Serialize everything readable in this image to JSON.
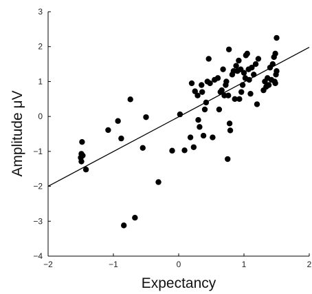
{
  "chart_data": {
    "type": "scatter",
    "title": "",
    "xlabel": "Expectancy",
    "ylabel": "Amplitude μV",
    "xlim": [
      -2,
      2
    ],
    "ylim": [
      -4,
      3
    ],
    "xticks": [
      -2,
      -1,
      0,
      1,
      2
    ],
    "yticks": [
      -4,
      -3,
      -2,
      -1,
      0,
      1,
      2,
      3
    ],
    "grid": false,
    "legend": "none",
    "marker_color": "#000000",
    "fit_line": {
      "x": [
        -2,
        2
      ],
      "y": [
        -2.0,
        1.98
      ]
    },
    "series": [
      {
        "points": [
          [
            -1.48,
            -0.73
          ],
          [
            -1.49,
            -1.07
          ],
          [
            -1.47,
            -1.12
          ],
          [
            -1.5,
            -1.18
          ],
          [
            -1.49,
            -1.29
          ],
          [
            -1.42,
            -1.52
          ],
          [
            -1.08,
            -0.39
          ],
          [
            -0.93,
            -0.13
          ],
          [
            -0.88,
            -0.63
          ],
          [
            -0.74,
            0.49
          ],
          [
            -0.55,
            -0.9
          ],
          [
            -0.5,
            -0.02
          ],
          [
            -0.31,
            -1.88
          ],
          [
            -0.67,
            -2.9
          ],
          [
            -0.84,
            -3.12
          ],
          [
            -0.1,
            -0.98
          ],
          [
            0.02,
            0.06
          ],
          [
            0.09,
            -0.97
          ],
          [
            0.18,
            -0.6
          ],
          [
            0.2,
            0.95
          ],
          [
            0.23,
            -0.88
          ],
          [
            0.25,
            0.72
          ],
          [
            0.29,
            0.6
          ],
          [
            0.3,
            -0.1
          ],
          [
            0.32,
            -0.3
          ],
          [
            0.35,
            0.9
          ],
          [
            0.36,
            0.7
          ],
          [
            0.38,
            -0.55
          ],
          [
            0.4,
            0.2
          ],
          [
            0.42,
            0.4
          ],
          [
            0.44,
            1.0
          ],
          [
            0.46,
            1.65
          ],
          [
            0.48,
            0.95
          ],
          [
            0.52,
            -0.6
          ],
          [
            0.55,
            1.05
          ],
          [
            0.6,
            1.1
          ],
          [
            0.62,
            0.2
          ],
          [
            0.64,
            0.7
          ],
          [
            0.66,
            0.75
          ],
          [
            0.68,
            1.35
          ],
          [
            0.7,
            0.6
          ],
          [
            0.72,
            0.9
          ],
          [
            0.73,
            1.0
          ],
          [
            0.75,
            -1.22
          ],
          [
            0.76,
            0.6
          ],
          [
            0.77,
            1.92
          ],
          [
            0.78,
            -0.2
          ],
          [
            0.79,
            -0.4
          ],
          [
            0.82,
            1.2
          ],
          [
            0.84,
            1.3
          ],
          [
            0.86,
            0.5
          ],
          [
            0.88,
            1.45
          ],
          [
            0.9,
            1.3
          ],
          [
            0.92,
            1.6
          ],
          [
            0.93,
            0.5
          ],
          [
            0.95,
            1.35
          ],
          [
            0.96,
            0.7
          ],
          [
            0.98,
            0.9
          ],
          [
            1.0,
            1.25
          ],
          [
            1.02,
            1.1
          ],
          [
            1.03,
            1.75
          ],
          [
            1.05,
            1.8
          ],
          [
            1.07,
            1.35
          ],
          [
            1.08,
            1.05
          ],
          [
            1.1,
            0.65
          ],
          [
            1.12,
            1.4
          ],
          [
            1.15,
            1.2
          ],
          [
            1.18,
            1.5
          ],
          [
            1.2,
            0.35
          ],
          [
            1.22,
            1.65
          ],
          [
            1.3,
            0.75
          ],
          [
            1.32,
            1.0
          ],
          [
            1.34,
            0.85
          ],
          [
            1.36,
            1.1
          ],
          [
            1.38,
            0.9
          ],
          [
            1.4,
            1.4
          ],
          [
            1.42,
            1.05
          ],
          [
            1.44,
            1.5
          ],
          [
            1.46,
            1.7
          ],
          [
            1.47,
            1.0
          ],
          [
            1.48,
            1.8
          ],
          [
            1.49,
            1.2
          ],
          [
            1.5,
            2.25
          ],
          [
            1.5,
            1.3
          ],
          [
            1.48,
            0.95
          ]
        ]
      }
    ]
  }
}
